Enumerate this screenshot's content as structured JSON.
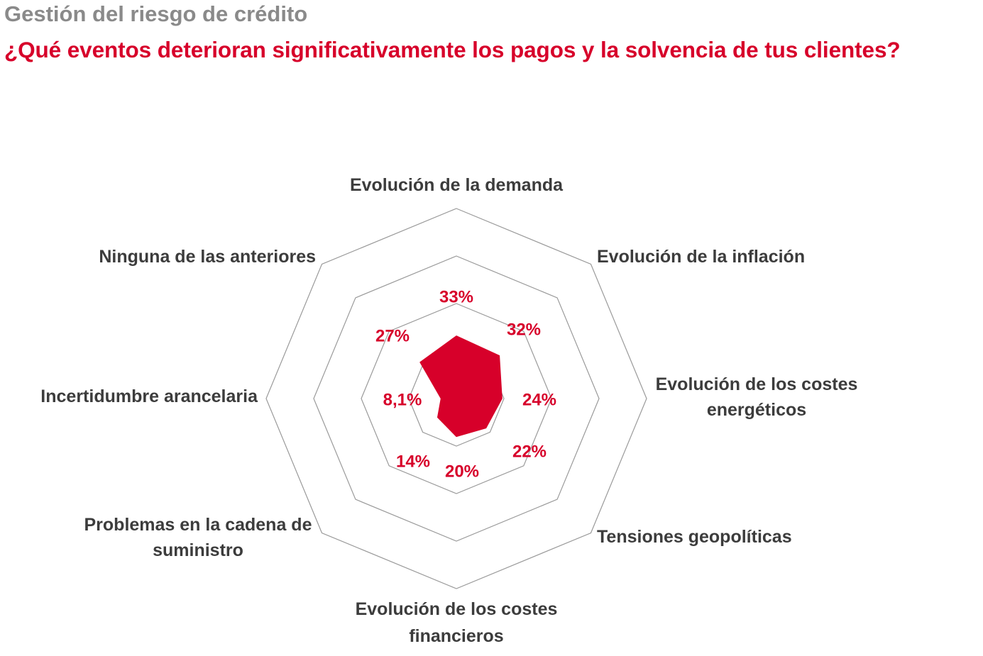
{
  "header": {
    "supertitle": "Gestión del riesgo de crédito",
    "title": "¿Qué eventos deterioran significativamente los pagos y la solvencia de tus clientes?"
  },
  "chart_data": {
    "type": "radar",
    "title": "¿Qué eventos deterioran significativamente los pagos y la solvencia de tus clientes?",
    "categories": [
      [
        "Evolución de la demanda"
      ],
      [
        "Evolución de la inflación"
      ],
      [
        "Evolución de los costes",
        "energéticos"
      ],
      [
        "Tensiones geopolíticas"
      ],
      [
        "Evolución de los costes",
        "financieros"
      ],
      [
        "Problemas en la cadena de",
        "suministro"
      ],
      [
        "Incertidumbre arancelaria"
      ],
      [
        "Ninguna de las anteriores"
      ]
    ],
    "values": [
      33,
      32,
      24,
      22,
      20,
      14,
      8.1,
      27
    ],
    "value_labels": [
      "33%",
      "32%",
      "24%",
      "22%",
      "20%",
      "14%",
      "8,1%",
      "27%"
    ],
    "rmax": 100,
    "grid_levels": [
      25,
      50,
      75,
      100
    ],
    "fill_color": "#d7002a",
    "grid_color": "#9a9a9a"
  }
}
